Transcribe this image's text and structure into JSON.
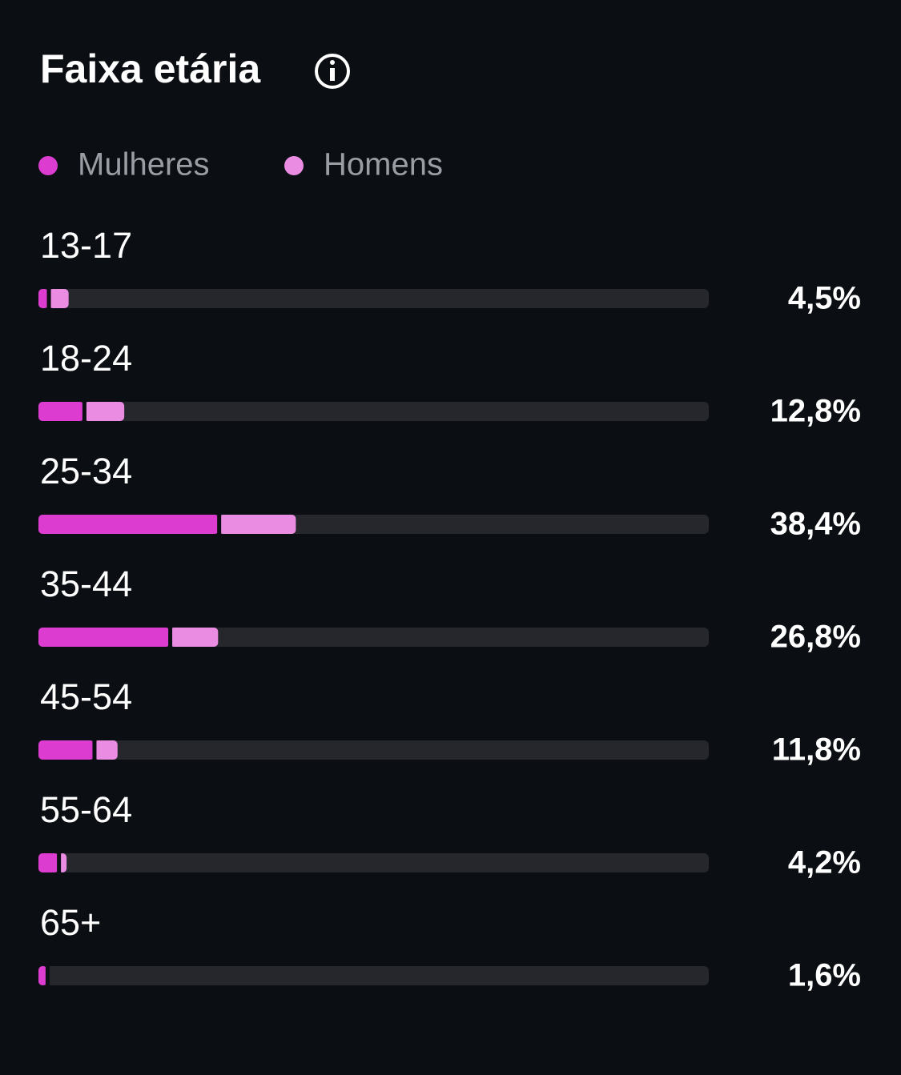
{
  "chart_data": {
    "type": "bar",
    "orientation": "horizontal",
    "stacked": true,
    "title": "Faixa etária",
    "categories": [
      "13-17",
      "18-24",
      "25-34",
      "35-44",
      "45-54",
      "55-64",
      "65+"
    ],
    "series": [
      {
        "name": "Mulheres",
        "color": "#dc3ccf",
        "values": [
          1.5,
          6.8,
          26.9,
          19.6,
          8.3,
          3.0,
          1.3
        ]
      },
      {
        "name": "Homens",
        "color": "#ea8ce2",
        "values": [
          3.0,
          6.0,
          11.5,
          7.2,
          3.5,
          1.2,
          0.3
        ]
      }
    ],
    "totals": {
      "values": [
        4.5,
        12.8,
        38.4,
        26.8,
        11.8,
        4.2,
        1.6
      ],
      "value_labels": [
        "4,5%",
        "12,8%",
        "38,4%",
        "26,8%",
        "11,8%",
        "4,2%",
        "1,6%"
      ]
    },
    "xlim": [
      0,
      100
    ]
  }
}
